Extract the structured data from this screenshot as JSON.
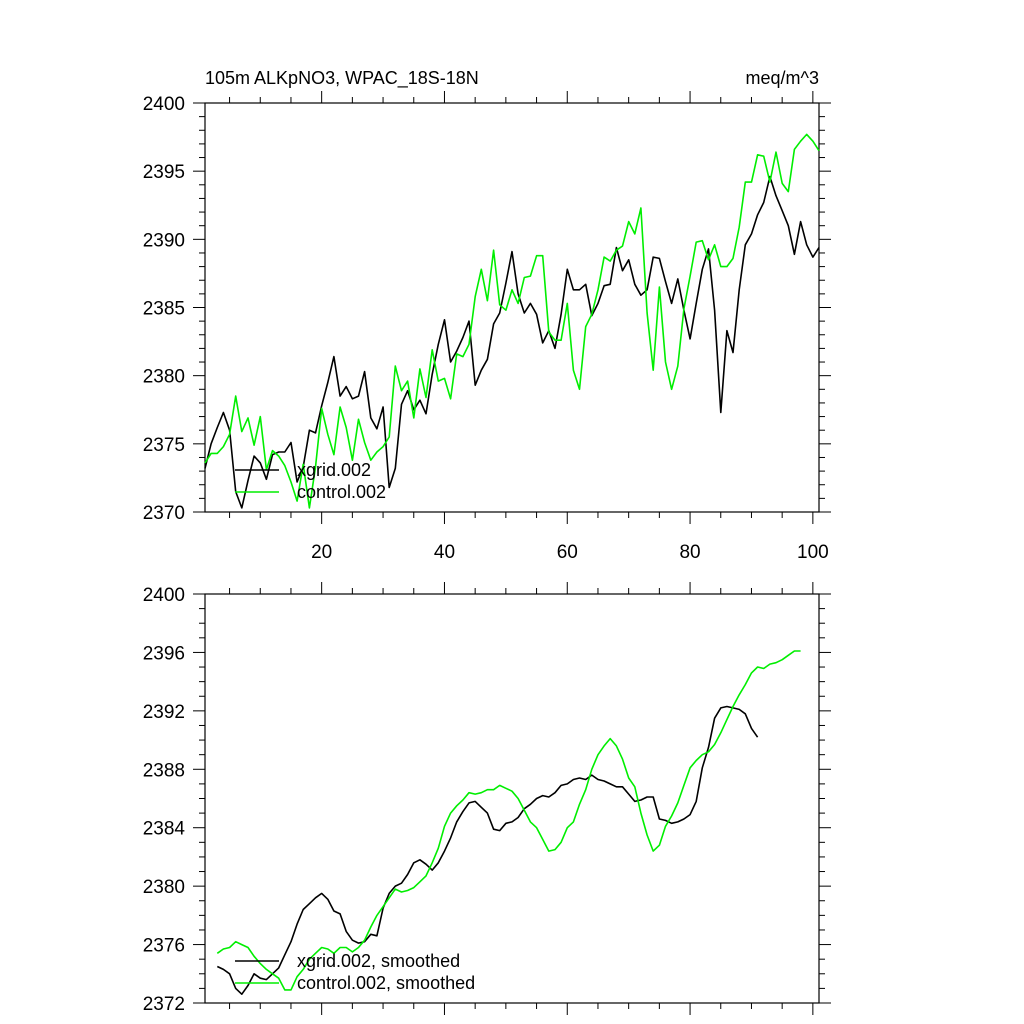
{
  "chart_data": [
    {
      "type": "line",
      "title": "105m ALKpNO3, WPAC_18S-18N",
      "units": "meq/m^3",
      "xlabel": "",
      "ylabel": "",
      "xlim": [
        1,
        101
      ],
      "ylim": [
        2370,
        2400
      ],
      "x_ticks": [
        20,
        40,
        60,
        80,
        100
      ],
      "y_ticks": [
        2370,
        2375,
        2380,
        2385,
        2390,
        2395,
        2400
      ],
      "legend_position": "bottom-left",
      "series": [
        {
          "name": "xgrid.002",
          "color": "#000000",
          "x_start": 1,
          "values": [
            2373.2,
            2375.0,
            2376.2,
            2377.3,
            2376.0,
            2371.5,
            2370.3,
            2372.3,
            2374.1,
            2373.6,
            2372.4,
            2374.2,
            2374.4,
            2374.4,
            2375.1,
            2372.2,
            2373.3,
            2376.0,
            2375.8,
            2377.8,
            2379.5,
            2381.4,
            2378.5,
            2379.2,
            2378.3,
            2378.5,
            2380.3,
            2376.9,
            2376.1,
            2377.7,
            2371.8,
            2373.2,
            2377.9,
            2378.9,
            2377.5,
            2378.2,
            2377.2,
            2380.1,
            2382.3,
            2384.1,
            2381.0,
            2381.8,
            2382.8,
            2384.0,
            2379.3,
            2380.4,
            2381.2,
            2383.8,
            2384.6,
            2386.8,
            2389.1,
            2386.0,
            2384.6,
            2385.3,
            2384.5,
            2382.4,
            2383.3,
            2382.0,
            2384.5,
            2387.8,
            2386.3,
            2386.3,
            2386.7,
            2384.4,
            2385.3,
            2386.6,
            2386.7,
            2389.4,
            2387.7,
            2388.5,
            2386.7,
            2385.9,
            2386.3,
            2388.7,
            2388.6,
            2386.9,
            2385.3,
            2387.1,
            2384.8,
            2382.7,
            2385.3,
            2387.8,
            2389.3,
            2384.8,
            2377.3,
            2383.3,
            2381.7,
            2386.3,
            2389.6,
            2390.4,
            2391.8,
            2392.7,
            2394.6,
            2393.2,
            2392.1,
            2391.0,
            2388.9,
            2391.3,
            2389.6,
            2388.7,
            2389.4
          ]
        },
        {
          "name": "control.002",
          "color": "#00ee00",
          "x_start": 1,
          "values": [
            2373.6,
            2374.3,
            2374.3,
            2374.8,
            2375.7,
            2378.5,
            2375.9,
            2376.9,
            2374.9,
            2377.0,
            2373.1,
            2374.5,
            2374.1,
            2373.4,
            2372.2,
            2370.8,
            2373.5,
            2370.3,
            2373.3,
            2377.6,
            2375.7,
            2374.2,
            2377.7,
            2376.2,
            2373.8,
            2376.8,
            2375.1,
            2373.8,
            2374.4,
            2374.8,
            2375.5,
            2380.7,
            2378.9,
            2379.6,
            2376.9,
            2380.5,
            2378.4,
            2381.9,
            2379.6,
            2379.8,
            2378.3,
            2381.6,
            2381.4,
            2382.3,
            2385.8,
            2387.8,
            2385.5,
            2389.2,
            2385.2,
            2384.8,
            2386.3,
            2385.3,
            2387.2,
            2387.3,
            2388.8,
            2388.8,
            2383.2,
            2382.6,
            2382.6,
            2385.3,
            2380.4,
            2379.0,
            2383.6,
            2384.5,
            2386.3,
            2388.7,
            2388.4,
            2389.2,
            2389.5,
            2391.3,
            2390.4,
            2392.3,
            2384.6,
            2380.4,
            2386.5,
            2381.0,
            2379.0,
            2380.7,
            2384.9,
            2387.3,
            2389.8,
            2389.9,
            2388.5,
            2389.6,
            2388.0,
            2388.0,
            2388.6,
            2390.9,
            2394.2,
            2394.2,
            2396.2,
            2396.1,
            2394.2,
            2396.4,
            2394.1,
            2393.5,
            2396.6,
            2397.2,
            2397.7,
            2397.2,
            2396.5
          ]
        }
      ]
    },
    {
      "type": "line",
      "title": "",
      "xlabel": "",
      "ylabel": "",
      "xlim": [
        1,
        101
      ],
      "ylim": [
        2372,
        2400
      ],
      "x_ticks": [
        20,
        40,
        60,
        80,
        100
      ],
      "y_ticks": [
        2372,
        2376,
        2380,
        2384,
        2388,
        2392,
        2396,
        2400
      ],
      "legend_position": "bottom-left",
      "series": [
        {
          "name": "xgrid.002, smoothed",
          "color": "#000000",
          "x_start": 3,
          "values": [
            2374.5,
            2374.3,
            2374.0,
            2373.0,
            2372.6,
            2373.2,
            2374.0,
            2373.7,
            2373.6,
            2374.0,
            2374.4,
            2375.3,
            2376.2,
            2377.4,
            2378.4,
            2378.8,
            2379.2,
            2379.5,
            2379.1,
            2378.3,
            2378.1,
            2376.9,
            2376.3,
            2376.1,
            2376.2,
            2376.7,
            2376.6,
            2378.5,
            2379.5,
            2380.0,
            2380.2,
            2380.8,
            2381.6,
            2381.8,
            2381.5,
            2381.1,
            2381.6,
            2382.4,
            2383.3,
            2384.4,
            2385.1,
            2385.7,
            2385.8,
            2385.4,
            2385.0,
            2383.9,
            2383.8,
            2384.3,
            2384.4,
            2384.7,
            2385.3,
            2385.6,
            2386.0,
            2386.2,
            2386.1,
            2386.4,
            2386.9,
            2387.0,
            2387.3,
            2387.4,
            2387.3,
            2387.6,
            2387.3,
            2387.2,
            2387.0,
            2386.8,
            2386.8,
            2386.3,
            2385.8,
            2385.9,
            2386.1,
            2386.1,
            2384.6,
            2384.5,
            2384.3,
            2384.4,
            2384.6,
            2384.9,
            2385.8,
            2388.1,
            2389.5,
            2391.5,
            2392.2,
            2392.3,
            2392.2,
            2392.1,
            2391.8,
            2390.8,
            2390.2
          ]
        },
        {
          "name": "control.002, smoothed",
          "color": "#00ee00",
          "x_start": 3,
          "values": [
            2375.4,
            2375.7,
            2375.8,
            2376.2,
            2376.0,
            2375.8,
            2375.2,
            2374.7,
            2374.3,
            2374.0,
            2373.7,
            2372.9,
            2372.9,
            2373.8,
            2374.3,
            2375.0,
            2375.4,
            2375.8,
            2375.7,
            2375.4,
            2375.8,
            2375.8,
            2375.5,
            2375.8,
            2376.3,
            2377.2,
            2378.0,
            2378.6,
            2379.2,
            2379.8,
            2379.6,
            2379.7,
            2379.9,
            2380.3,
            2380.7,
            2381.6,
            2382.6,
            2384.1,
            2385.0,
            2385.5,
            2385.9,
            2386.4,
            2386.3,
            2386.4,
            2386.6,
            2386.6,
            2386.9,
            2386.7,
            2386.5,
            2386.0,
            2385.2,
            2384.4,
            2384.0,
            2383.2,
            2382.4,
            2382.5,
            2383.0,
            2384.0,
            2384.4,
            2385.6,
            2386.6,
            2388.0,
            2389.0,
            2389.6,
            2390.1,
            2389.6,
            2388.7,
            2387.4,
            2386.8,
            2385.0,
            2383.5,
            2382.4,
            2382.8,
            2384.1,
            2384.8,
            2385.7,
            2386.9,
            2388.1,
            2388.6,
            2389.0,
            2389.2,
            2389.7,
            2390.5,
            2391.4,
            2392.3,
            2393.1,
            2393.8,
            2394.6,
            2395.0,
            2394.9,
            2395.2,
            2395.3,
            2395.5,
            2395.8,
            2396.1,
            2396.1
          ]
        }
      ]
    }
  ]
}
